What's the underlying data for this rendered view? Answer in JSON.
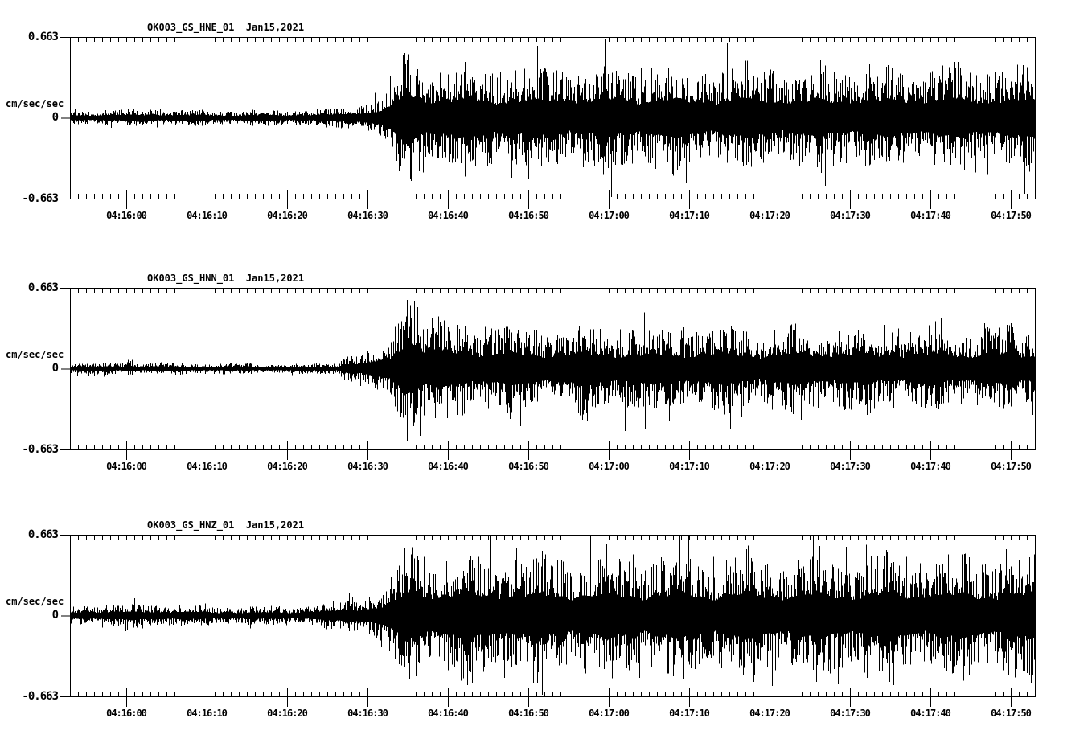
{
  "colors": {
    "background": "#ffffff",
    "ink": "#000000"
  },
  "chart_data": [
    {
      "type": "line",
      "title": "OK003_GS_HNE_01  Jan15,2021",
      "station": "OK003_GS_HNE_01",
      "date_label": "Jan15,2021",
      "ylabel": "cm/sec/sec",
      "ytick_labels": [
        "0.663",
        "0",
        "-0.663"
      ],
      "ylim": [
        -0.663,
        0.663
      ],
      "xtick_labels": [
        "04:16:00",
        "04:16:10",
        "04:16:20",
        "04:16:30",
        "04:16:40",
        "04:16:50",
        "04:17:00",
        "04:17:10",
        "04:17:20",
        "04:17:30",
        "04:17:40",
        "04:17:50"
      ],
      "xtick_offsets_s": [
        7,
        17,
        27,
        37,
        47,
        57,
        67,
        77,
        87,
        97,
        107,
        117
      ],
      "minor_tick_s": 1,
      "major_tick_s": 10,
      "window_length_s": 120,
      "envelope_t_amp": [
        [
          0,
          0.045
        ],
        [
          6,
          0.042
        ],
        [
          10,
          0.052
        ],
        [
          13,
          0.044
        ],
        [
          20,
          0.04
        ],
        [
          26,
          0.042
        ],
        [
          31,
          0.048
        ],
        [
          34,
          0.058
        ],
        [
          36,
          0.082
        ],
        [
          38,
          0.112
        ],
        [
          40,
          0.175
        ],
        [
          41,
          0.3
        ],
        [
          41.7,
          0.42
        ],
        [
          42.5,
          0.335
        ],
        [
          44,
          0.3
        ],
        [
          47,
          0.295
        ],
        [
          51,
          0.27
        ],
        [
          55,
          0.3
        ],
        [
          59,
          0.275
        ],
        [
          63,
          0.3
        ],
        [
          68,
          0.28
        ],
        [
          73,
          0.3
        ],
        [
          78,
          0.275
        ],
        [
          84,
          0.29
        ],
        [
          90,
          0.275
        ],
        [
          96,
          0.29
        ],
        [
          102,
          0.285
        ],
        [
          108,
          0.29
        ],
        [
          114,
          0.285
        ],
        [
          120,
          0.29
        ]
      ],
      "spikes_t_amp": [
        [
          41.7,
          0.44
        ],
        [
          42.0,
          -0.45
        ],
        [
          43.2,
          0.4
        ],
        [
          46,
          0.37
        ],
        [
          50,
          -0.35
        ],
        [
          53.5,
          0.38
        ],
        [
          57,
          -0.36
        ],
        [
          60.5,
          0.39
        ],
        [
          64,
          0.37
        ],
        [
          67.5,
          -0.36
        ],
        [
          71,
          0.41
        ],
        [
          75,
          -0.37
        ],
        [
          79,
          0.36
        ],
        [
          83,
          -0.35
        ],
        [
          87,
          0.37
        ],
        [
          91,
          -0.36
        ],
        [
          95,
          0.38
        ],
        [
          99,
          0.36
        ],
        [
          103,
          -0.35
        ],
        [
          107,
          0.37
        ],
        [
          111,
          -0.36
        ],
        [
          115,
          0.38
        ],
        [
          118.5,
          0.4
        ]
      ]
    },
    {
      "type": "line",
      "title": "OK003_GS_HNN_01  Jan15,2021",
      "station": "OK003_GS_HNN_01",
      "date_label": "Jan15,2021",
      "ylabel": "cm/sec/sec",
      "ytick_labels": [
        "0.663",
        "0",
        "-0.663"
      ],
      "ylim": [
        -0.663,
        0.663
      ],
      "xtick_labels": [
        "04:16:00",
        "04:16:10",
        "04:16:20",
        "04:16:30",
        "04:16:40",
        "04:16:50",
        "04:17:00",
        "04:17:10",
        "04:17:20",
        "04:17:30",
        "04:17:40",
        "04:17:50"
      ],
      "xtick_offsets_s": [
        7,
        17,
        27,
        37,
        47,
        57,
        67,
        77,
        87,
        97,
        107,
        117
      ],
      "minor_tick_s": 1,
      "major_tick_s": 10,
      "window_length_s": 120,
      "envelope_t_amp": [
        [
          0,
          0.034
        ],
        [
          6,
          0.032
        ],
        [
          7.5,
          0.048
        ],
        [
          9,
          0.034
        ],
        [
          14,
          0.031
        ],
        [
          20,
          0.029
        ],
        [
          26,
          0.027
        ],
        [
          31,
          0.029
        ],
        [
          33,
          0.036
        ],
        [
          35,
          0.095
        ],
        [
          36.5,
          0.075
        ],
        [
          38,
          0.115
        ],
        [
          40,
          0.165
        ],
        [
          41.2,
          0.38
        ],
        [
          41.8,
          0.56
        ],
        [
          42.6,
          0.42
        ],
        [
          44,
          0.31
        ],
        [
          46,
          0.275
        ],
        [
          49,
          0.255
        ],
        [
          53,
          0.245
        ],
        [
          58,
          0.235
        ],
        [
          63,
          0.245
        ],
        [
          68,
          0.235
        ],
        [
          74,
          0.228
        ],
        [
          80,
          0.238
        ],
        [
          86,
          0.228
        ],
        [
          92,
          0.238
        ],
        [
          98,
          0.228
        ],
        [
          104,
          0.238
        ],
        [
          110,
          0.228
        ],
        [
          116,
          0.238
        ],
        [
          120,
          0.23
        ]
      ],
      "spikes_t_amp": [
        [
          41.5,
          0.61
        ],
        [
          41.9,
          -0.59
        ],
        [
          42.3,
          0.52
        ],
        [
          43.5,
          -0.5
        ],
        [
          45,
          0.42
        ],
        [
          47,
          0.34
        ],
        [
          52,
          -0.33
        ],
        [
          58,
          0.32
        ],
        [
          63,
          -0.31
        ],
        [
          69,
          -0.51
        ],
        [
          72,
          0.31
        ],
        [
          76,
          0.31
        ],
        [
          82,
          -0.36
        ],
        [
          83.5,
          -0.4
        ],
        [
          88,
          0.31
        ],
        [
          93,
          -0.32
        ],
        [
          98,
          0.32
        ],
        [
          103,
          0.33
        ],
        [
          108,
          -0.31
        ],
        [
          113,
          0.32
        ],
        [
          117,
          -0.31
        ],
        [
          119.7,
          -0.38
        ]
      ]
    },
    {
      "type": "line",
      "title": "OK003_GS_HNZ_01  Jan15,2021",
      "station": "OK003_GS_HNZ_01",
      "date_label": "Jan15,2021",
      "ylabel": "cm/sec/sec",
      "ytick_labels": [
        "0.663",
        "0",
        "-0.663"
      ],
      "ylim": [
        -0.663,
        0.663
      ],
      "xtick_labels": [
        "04:16:00",
        "04:16:10",
        "04:16:20",
        "04:16:30",
        "04:16:40",
        "04:16:50",
        "04:17:00",
        "04:17:10",
        "04:17:20",
        "04:17:30",
        "04:17:40",
        "04:17:50"
      ],
      "xtick_offsets_s": [
        7,
        17,
        27,
        37,
        47,
        57,
        67,
        77,
        87,
        97,
        107,
        117
      ],
      "minor_tick_s": 1,
      "major_tick_s": 10,
      "window_length_s": 120,
      "envelope_t_amp": [
        [
          0,
          0.06
        ],
        [
          5,
          0.055
        ],
        [
          9,
          0.068
        ],
        [
          12,
          0.058
        ],
        [
          18,
          0.052
        ],
        [
          24,
          0.05
        ],
        [
          28,
          0.055
        ],
        [
          31,
          0.064
        ],
        [
          34,
          0.084
        ],
        [
          37,
          0.118
        ],
        [
          39,
          0.158
        ],
        [
          41,
          0.26
        ],
        [
          41.8,
          0.4
        ],
        [
          43,
          0.355
        ],
        [
          45,
          0.335
        ],
        [
          48,
          0.355
        ],
        [
          52,
          0.33
        ],
        [
          56,
          0.35
        ],
        [
          60,
          0.33
        ],
        [
          64,
          0.35
        ],
        [
          68,
          0.33
        ],
        [
          72,
          0.35
        ],
        [
          77,
          0.33
        ],
        [
          82,
          0.35
        ],
        [
          87,
          0.33
        ],
        [
          92,
          0.345
        ],
        [
          97,
          0.335
        ],
        [
          102,
          0.35
        ],
        [
          107,
          0.33
        ],
        [
          112,
          0.34
        ],
        [
          117,
          0.33
        ],
        [
          120,
          0.335
        ]
      ],
      "spikes_t_amp": [
        [
          41.6,
          0.55
        ],
        [
          42.2,
          -0.52
        ],
        [
          44,
          0.48
        ],
        [
          47,
          -0.45
        ],
        [
          50,
          0.46
        ],
        [
          54,
          -0.44
        ],
        [
          58,
          0.47
        ],
        [
          62,
          0.56
        ],
        [
          66,
          -0.48
        ],
        [
          70,
          0.5
        ],
        [
          75,
          -0.46
        ],
        [
          80,
          0.48
        ],
        [
          85,
          -0.45
        ],
        [
          90,
          0.47
        ],
        [
          95,
          -0.44
        ],
        [
          99,
          0.58
        ],
        [
          104,
          0.48
        ],
        [
          109,
          -0.46
        ],
        [
          113,
          0.47
        ],
        [
          116,
          -0.45
        ],
        [
          118,
          0.46
        ],
        [
          119.9,
          0.5
        ]
      ]
    }
  ]
}
